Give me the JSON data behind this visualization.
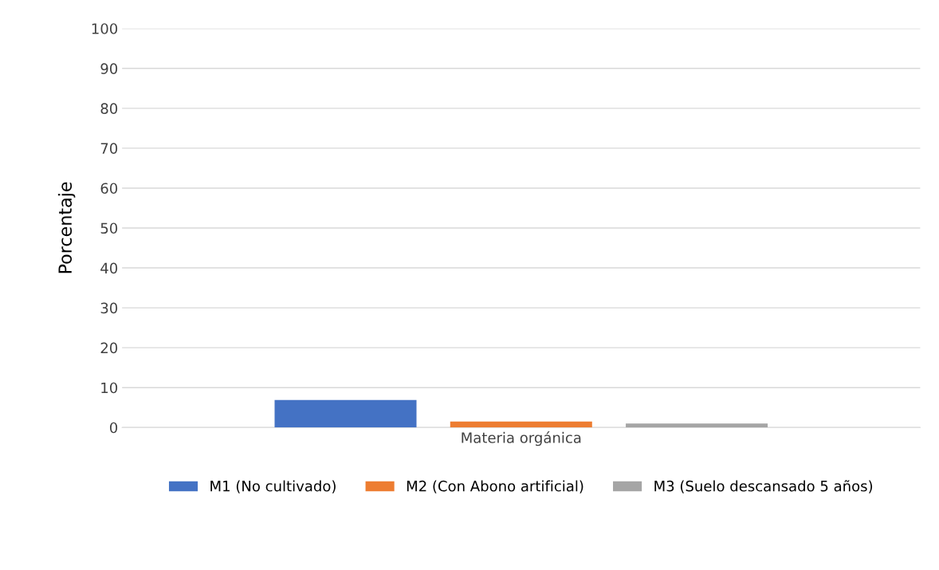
{
  "chart_data": {
    "type": "bar",
    "ylabel": "Porcentaje",
    "categories": [
      "Materia orgánica"
    ],
    "series": [
      {
        "name": "M1 (No cultivado)",
        "color": "#4472c4",
        "values": [
          6.9
        ]
      },
      {
        "name": "M2 (Con Abono artificial)",
        "color": "#ed7d31",
        "values": [
          1.5
        ]
      },
      {
        "name": "M3 (Suelo descansado 5 años)",
        "color": "#a5a5a5",
        "values": [
          1.0
        ]
      }
    ],
    "ylim": [
      0,
      100
    ],
    "yticks": [
      0,
      10,
      20,
      30,
      40,
      50,
      60,
      70,
      80,
      90,
      100
    ],
    "grid": "y",
    "legend": "bottom"
  }
}
